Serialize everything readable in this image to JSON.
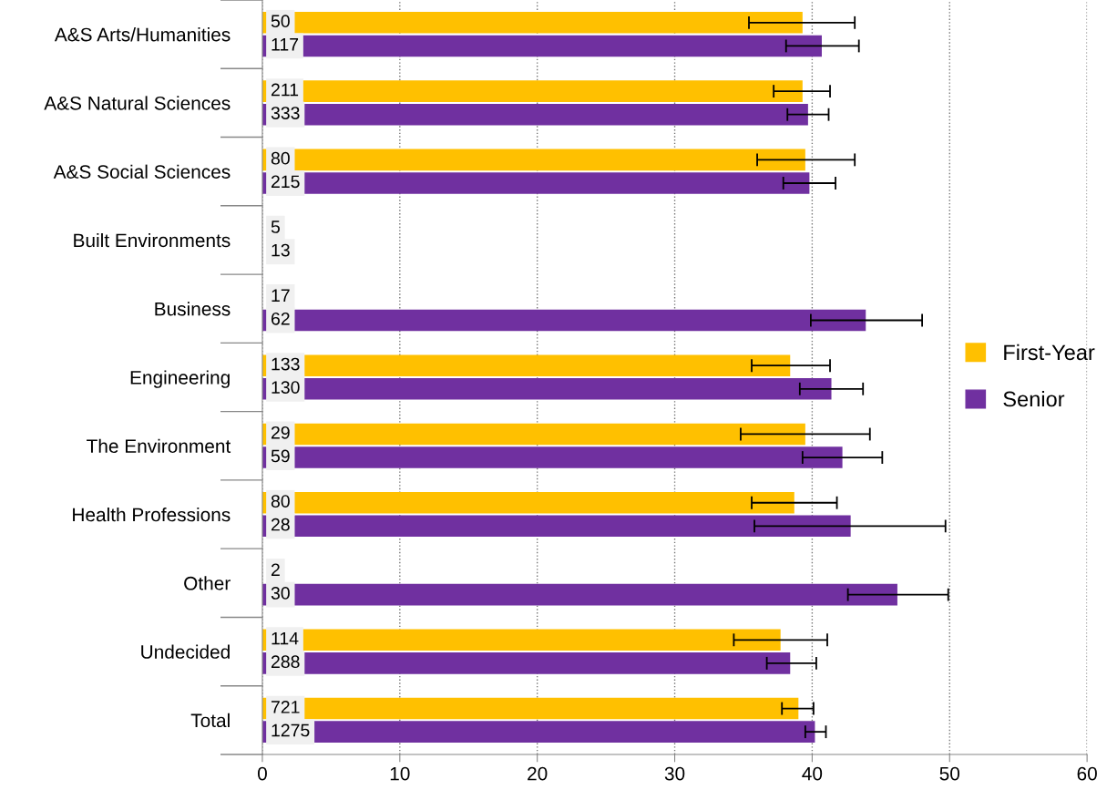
{
  "chart_data": {
    "type": "bar",
    "orientation": "horizontal",
    "categories": [
      "A&S Arts/Humanities",
      "A&S Natural Sciences",
      "A&S Social Sciences",
      "Built Environments",
      "Business",
      "Engineering",
      "The Environment",
      "Health Professions",
      "Other",
      "Undecided",
      "Total"
    ],
    "series": [
      {
        "name": "First-Year",
        "color": "#ffc000",
        "values": [
          39.3,
          39.3,
          39.5,
          null,
          null,
          38.4,
          39.5,
          38.7,
          null,
          37.7,
          39.0
        ],
        "errors": [
          [
            35.4,
            43.1
          ],
          [
            37.2,
            41.3
          ],
          [
            36.0,
            43.1
          ],
          null,
          null,
          [
            35.6,
            41.3
          ],
          [
            34.8,
            44.2
          ],
          [
            35.6,
            41.8
          ],
          null,
          [
            34.3,
            41.1
          ],
          [
            37.8,
            40.1
          ]
        ]
      },
      {
        "name": "Senior",
        "color": "#7030a0",
        "values": [
          40.7,
          39.7,
          39.8,
          null,
          43.9,
          41.4,
          42.2,
          42.8,
          46.2,
          38.4,
          40.2
        ],
        "errors": [
          [
            38.1,
            43.4
          ],
          [
            38.2,
            41.2
          ],
          [
            37.9,
            41.7
          ],
          null,
          [
            39.9,
            48.0
          ],
          [
            39.1,
            43.7
          ],
          [
            39.3,
            45.1
          ],
          [
            35.8,
            49.7
          ],
          [
            42.6,
            49.9
          ],
          [
            36.7,
            40.3
          ],
          [
            39.5,
            41.0
          ]
        ]
      }
    ],
    "annotations": [
      "50",
      "117",
      "211",
      "333",
      "80",
      "215",
      "5",
      "13",
      "17",
      "62",
      "133",
      "130",
      "29",
      "59",
      "80",
      "28",
      "2",
      "30",
      "114",
      "288",
      "721",
      "1275"
    ],
    "xlim": [
      0,
      60
    ],
    "xticks": [
      0,
      10,
      20,
      30,
      40,
      50,
      60
    ],
    "grid": "x",
    "legend": "right"
  }
}
